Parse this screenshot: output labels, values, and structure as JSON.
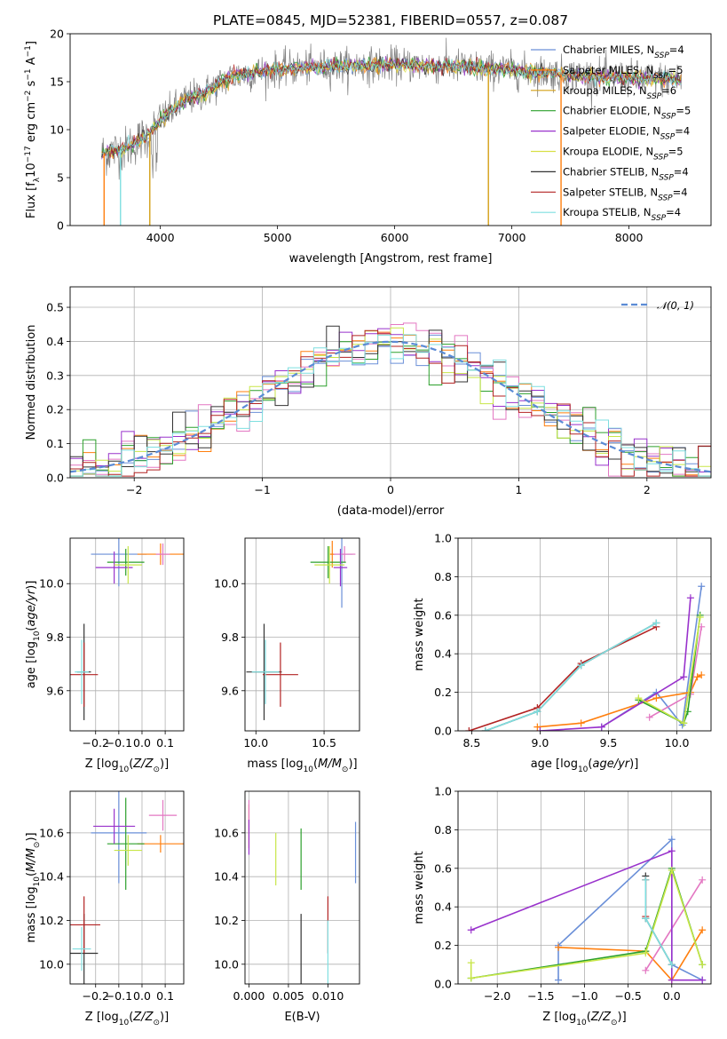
{
  "chart_data": [
    {
      "id": "spectrum",
      "type": "line",
      "title": "PLATE=0845, MJD=52381, FIBERID=0557, z=0.087",
      "xlabel": "wavelength [Angstrom, rest frame]",
      "ylabel": "Flux [f_λ 10^-17 erg cm^-2 s^-1 A^-1]",
      "xlim": [
        3230,
        8700
      ],
      "ylim": [
        0,
        20
      ],
      "xticks": [
        4000,
        5000,
        6000,
        7000,
        8000
      ],
      "yticks": [
        0,
        5,
        10,
        15,
        20
      ],
      "legend_position": "top-right",
      "grid": false,
      "continuum": [
        [
          3500,
          7.5
        ],
        [
          3700,
          8
        ],
        [
          3900,
          9.5
        ],
        [
          4000,
          11
        ],
        [
          4200,
          13
        ],
        [
          4400,
          14
        ],
        [
          4600,
          15.5
        ],
        [
          5000,
          16.3
        ],
        [
          5500,
          16.6
        ],
        [
          6000,
          16.8
        ],
        [
          6500,
          16.6
        ],
        [
          7000,
          16.2
        ],
        [
          7500,
          15.7
        ],
        [
          8000,
          15.4
        ],
        [
          8450,
          15.2
        ]
      ],
      "legend": [
        {
          "label": "Chabrier MILES, N",
          "sub": "SSP",
          "suffix": "=4",
          "color": "#6a8fd8"
        },
        {
          "label": "Salpeter MILES, N",
          "sub": "SSP",
          "suffix": "=5",
          "color": "#ff7f0e"
        },
        {
          "label": "Kroupa MILES, N",
          "sub": "SSP",
          "suffix": "=6",
          "color": "#d4a017"
        },
        {
          "label": "Chabrier ELODIE, N",
          "sub": "SSP",
          "suffix": "=5",
          "color": "#2ca02c"
        },
        {
          "label": "Salpeter ELODIE, N",
          "sub": "SSP",
          "suffix": "=4",
          "color": "#9932cc"
        },
        {
          "label": "Kroupa ELODIE, N",
          "sub": "SSP",
          "suffix": "=5",
          "color": "#d8e046"
        },
        {
          "label": "Chabrier STELIB, N",
          "sub": "SSP",
          "suffix": "=4",
          "color": "#333333"
        },
        {
          "label": "Salpeter STELIB, N",
          "sub": "SSP",
          "suffix": "=4",
          "color": "#b22222"
        },
        {
          "label": "Kroupa STELIB, N",
          "sub": "SSP",
          "suffix": "=4",
          "color": "#7fdfe0"
        }
      ]
    },
    {
      "id": "residuals",
      "type": "histogram",
      "xlabel": "(data-model)/error",
      "ylabel": "Normed distribution",
      "xlim": [
        -2.5,
        2.5
      ],
      "ylim": [
        0,
        0.56
      ],
      "xticks": [
        -2,
        -1,
        0,
        1,
        2
      ],
      "yticks": [
        0.0,
        0.1,
        0.2,
        0.3,
        0.4,
        0.5
      ],
      "grid": true,
      "legend_label": "𝒩(0, 1)",
      "legend_color": "#5b8bd5",
      "bin_width": 0.1,
      "series_colors": [
        "#6a8fd8",
        "#ff7f0e",
        "#e377c2",
        "#2ca02c",
        "#9932cc",
        "#c8e648",
        "#333333",
        "#b22222",
        "#7fdfe0"
      ]
    },
    {
      "id": "age_vs_Z",
      "type": "errorbar",
      "xlabel": "Z [log10(Z/Z⊙)]",
      "ylabel": "age [log10(age/yr)]",
      "xlim": [
        -0.31,
        0.18
      ],
      "ylim": [
        9.45,
        10.17
      ],
      "xticks": [
        -0.2,
        -0.1,
        0.0,
        0.1
      ],
      "yticks": [
        9.6,
        9.8,
        10.0
      ],
      "grid": true,
      "points": [
        {
          "x": -0.1,
          "y": 10.11,
          "xerr": 0.12,
          "yerr": 0.12,
          "color": "#6a8fd8"
        },
        {
          "x": 0.08,
          "y": 10.11,
          "xerr": 0.1,
          "yerr": 0.04,
          "color": "#ff7f0e"
        },
        {
          "x": 0.09,
          "y": 10.11,
          "xerr": 0.03,
          "yerr": 0.04,
          "color": "#e377c2"
        },
        {
          "x": -0.07,
          "y": 10.08,
          "xerr": 0.08,
          "yerr": 0.05,
          "color": "#2ca02c"
        },
        {
          "x": -0.12,
          "y": 10.06,
          "xerr": 0.08,
          "yerr": 0.06,
          "color": "#9932cc"
        },
        {
          "x": -0.06,
          "y": 10.07,
          "xerr": 0.06,
          "yerr": 0.07,
          "color": "#c8e648"
        },
        {
          "x": -0.25,
          "y": 9.67,
          "xerr": 0.03,
          "yerr": 0.18,
          "color": "#333333"
        },
        {
          "x": -0.25,
          "y": 9.66,
          "xerr": 0.06,
          "yerr": 0.12,
          "color": "#b22222"
        },
        {
          "x": -0.26,
          "y": 9.67,
          "xerr": 0.03,
          "yerr": 0.12,
          "color": "#7fdfe0"
        }
      ]
    },
    {
      "id": "age_vs_mass",
      "type": "errorbar",
      "xlabel": "mass [log10(M/M⊙)]",
      "ylabel": "",
      "xlim": [
        9.92,
        10.76
      ],
      "ylim": [
        9.45,
        10.17
      ],
      "xticks": [
        10.0,
        10.5
      ],
      "yticks": [
        9.6,
        9.8,
        10.0
      ],
      "grid": true,
      "points": [
        {
          "x": 10.63,
          "y": 10.11,
          "xerr": 0.08,
          "yerr": 0.2,
          "color": "#6a8fd8"
        },
        {
          "x": 10.56,
          "y": 10.11,
          "xerr": 0.02,
          "yerr": 0.05,
          "color": "#ff7f0e"
        },
        {
          "x": 10.65,
          "y": 10.11,
          "xerr": 0.08,
          "yerr": 0.03,
          "color": "#e377c2"
        },
        {
          "x": 10.53,
          "y": 10.08,
          "xerr": 0.13,
          "yerr": 0.06,
          "color": "#2ca02c"
        },
        {
          "x": 10.62,
          "y": 10.06,
          "xerr": 0.05,
          "yerr": 0.07,
          "color": "#9932cc"
        },
        {
          "x": 10.54,
          "y": 10.07,
          "xerr": 0.11,
          "yerr": 0.07,
          "color": "#c8e648"
        },
        {
          "x": 10.06,
          "y": 9.67,
          "xerr": 0.13,
          "yerr": 0.18,
          "color": "#333333"
        },
        {
          "x": 10.18,
          "y": 9.66,
          "xerr": 0.13,
          "yerr": 0.12,
          "color": "#b22222"
        },
        {
          "x": 10.07,
          "y": 9.67,
          "xerr": 0.1,
          "yerr": 0.12,
          "color": "#7fdfe0"
        }
      ]
    },
    {
      "id": "weight_vs_age",
      "type": "line",
      "xlabel": "age [log10(age/yr)]",
      "ylabel": "mass weight",
      "xlim": [
        8.4,
        10.25
      ],
      "ylim": [
        0.0,
        1.0
      ],
      "xticks": [
        8.5,
        9.0,
        9.5,
        10.0
      ],
      "yticks": [
        0.0,
        0.2,
        0.4,
        0.6,
        0.8,
        1.0
      ],
      "grid": true,
      "series": [
        {
          "color": "#6a8fd8",
          "points": [
            [
              9.45,
              0.02
            ],
            [
              9.85,
              0.2
            ],
            [
              10.04,
              0.03
            ],
            [
              10.18,
              0.75
            ]
          ]
        },
        {
          "color": "#ff7f0e",
          "points": [
            [
              8.98,
              0.02
            ],
            [
              9.3,
              0.04
            ],
            [
              9.85,
              0.17
            ],
            [
              10.1,
              0.2
            ],
            [
              10.15,
              0.28
            ],
            [
              10.18,
              0.29
            ]
          ]
        },
        {
          "color": "#e377c2",
          "points": [
            [
              9.8,
              0.07
            ],
            [
              10.1,
              0.19
            ],
            [
              10.18,
              0.54
            ]
          ]
        },
        {
          "color": "#2ca02c",
          "points": [
            [
              9.72,
              0.16
            ],
            [
              10.05,
              0.04
            ],
            [
              10.08,
              0.1
            ],
            [
              10.17,
              0.6
            ]
          ]
        },
        {
          "color": "#9932cc",
          "points": [
            [
              9.0,
              0.0
            ],
            [
              9.45,
              0.02
            ],
            [
              10.05,
              0.28
            ],
            [
              10.1,
              0.69
            ]
          ]
        },
        {
          "color": "#c8e648",
          "points": [
            [
              9.72,
              0.17
            ],
            [
              10.05,
              0.04
            ],
            [
              10.17,
              0.59
            ]
          ]
        },
        {
          "color": "#333333",
          "points": [
            [
              8.6,
              0.0
            ],
            [
              8.98,
              0.1
            ],
            [
              9.3,
              0.34
            ],
            [
              9.85,
              0.56
            ]
          ]
        },
        {
          "color": "#b22222",
          "points": [
            [
              8.48,
              0.0
            ],
            [
              8.98,
              0.12
            ],
            [
              9.3,
              0.35
            ],
            [
              9.85,
              0.54
            ]
          ]
        },
        {
          "color": "#7fdfe0",
          "points": [
            [
              8.6,
              0.0
            ],
            [
              8.98,
              0.1
            ],
            [
              9.3,
              0.34
            ],
            [
              9.85,
              0.56
            ]
          ]
        }
      ]
    },
    {
      "id": "mass_vs_Z",
      "type": "errorbar",
      "xlabel": "Z [log10(Z/Z⊙)]",
      "ylabel": "mass [log10(M/M⊙)]",
      "xlim": [
        -0.31,
        0.18
      ],
      "ylim": [
        9.91,
        10.79
      ],
      "xticks": [
        -0.2,
        -0.1,
        0.0,
        0.1
      ],
      "yticks": [
        10.0,
        10.2,
        10.4,
        10.6
      ],
      "grid": true,
      "points": [
        {
          "x": -0.1,
          "y": 10.6,
          "xerr": 0.12,
          "yerr": 0.23,
          "color": "#6a8fd8"
        },
        {
          "x": 0.08,
          "y": 10.55,
          "xerr": 0.1,
          "yerr": 0.04,
          "color": "#ff7f0e"
        },
        {
          "x": 0.09,
          "y": 10.68,
          "xerr": 0.06,
          "yerr": 0.07,
          "color": "#e377c2"
        },
        {
          "x": -0.07,
          "y": 10.55,
          "xerr": 0.08,
          "yerr": 0.21,
          "color": "#2ca02c"
        },
        {
          "x": -0.12,
          "y": 10.63,
          "xerr": 0.09,
          "yerr": 0.08,
          "color": "#9932cc"
        },
        {
          "x": -0.06,
          "y": 10.52,
          "xerr": 0.06,
          "yerr": 0.07,
          "color": "#c8e648"
        },
        {
          "x": -0.25,
          "y": 10.05,
          "xerr": 0.06,
          "yerr": 0.18,
          "color": "#333333"
        },
        {
          "x": -0.25,
          "y": 10.18,
          "xerr": 0.07,
          "yerr": 0.13,
          "color": "#b22222"
        },
        {
          "x": -0.26,
          "y": 10.07,
          "xerr": 0.04,
          "yerr": 0.1,
          "color": "#7fdfe0"
        }
      ]
    },
    {
      "id": "mass_vs_EBV",
      "type": "errorbar",
      "xlabel": "E(B-V)",
      "ylabel": "",
      "xlim": [
        -0.0005,
        0.014
      ],
      "ylim": [
        9.91,
        10.79
      ],
      "xticks": [
        0.0,
        0.005,
        0.01
      ],
      "xtick_labels": [
        "0.000",
        "0.005",
        "0.010"
      ],
      "yticks": [
        10.0,
        10.2,
        10.4,
        10.6
      ],
      "grid": true,
      "points": [
        {
          "x": 0.0135,
          "y": 10.51,
          "xerr": 0,
          "yerr": 0.14,
          "color": "#6a8fd8"
        },
        {
          "x": 0.0,
          "y": 10.63,
          "xerr": 0,
          "yerr": 0.1,
          "color": "#ff7f0e"
        },
        {
          "x": 0.0,
          "y": 10.68,
          "xerr": 0,
          "yerr": 0.07,
          "color": "#e377c2"
        },
        {
          "x": 0.0066,
          "y": 10.48,
          "xerr": 0,
          "yerr": 0.14,
          "color": "#2ca02c"
        },
        {
          "x": 0.0,
          "y": 10.58,
          "xerr": 0,
          "yerr": 0.08,
          "color": "#9932cc"
        },
        {
          "x": 0.0034,
          "y": 10.48,
          "xerr": 0,
          "yerr": 0.12,
          "color": "#c8e648"
        },
        {
          "x": 0.0066,
          "y": 10.05,
          "xerr": 0,
          "yerr": 0.18,
          "color": "#333333"
        },
        {
          "x": 0.01,
          "y": 10.18,
          "xerr": 0,
          "yerr": 0.13,
          "color": "#b22222"
        },
        {
          "x": 0.01,
          "y": 10.05,
          "xerr": 0,
          "yerr": 0.15,
          "color": "#7fdfe0"
        }
      ]
    },
    {
      "id": "weight_vs_Z",
      "type": "line",
      "xlabel": "Z [log10(Z/Z⊙)]",
      "ylabel": "mass weight",
      "xlim": [
        -2.45,
        0.45
      ],
      "ylim": [
        0.0,
        1.0
      ],
      "xticks": [
        -2.0,
        -1.5,
        -1.0,
        -0.5,
        0.0
      ],
      "yticks": [
        0.0,
        0.2,
        0.4,
        0.6,
        0.8,
        1.0
      ],
      "grid": true,
      "series": [
        {
          "color": "#6a8fd8",
          "points": [
            [
              -1.3,
              0.02
            ],
            [
              -1.3,
              0.2
            ],
            [
              0.0,
              0.75
            ],
            [
              0.0,
              0.1
            ],
            [
              0.35,
              0.02
            ]
          ]
        },
        {
          "color": "#ff7f0e",
          "points": [
            [
              -1.3,
              0.19
            ],
            [
              -0.3,
              0.17
            ],
            [
              0.0,
              0.02
            ],
            [
              0.35,
              0.28
            ]
          ]
        },
        {
          "color": "#e377c2",
          "points": [
            [
              -0.3,
              0.07
            ],
            [
              0.35,
              0.54
            ]
          ]
        },
        {
          "color": "#2ca02c",
          "points": [
            [
              -2.3,
              0.03
            ],
            [
              -0.3,
              0.17
            ],
            [
              0.0,
              0.6
            ],
            [
              0.35,
              0.1
            ]
          ]
        },
        {
          "color": "#9932cc",
          "points": [
            [
              -2.3,
              0.28
            ],
            [
              0.0,
              0.69
            ],
            [
              0.0,
              0.02
            ],
            [
              0.35,
              0.02
            ]
          ]
        },
        {
          "color": "#c8e648",
          "points": [
            [
              -2.3,
              0.11
            ],
            [
              -2.3,
              0.03
            ],
            [
              -0.3,
              0.16
            ],
            [
              0.0,
              0.59
            ],
            [
              0.35,
              0.1
            ]
          ]
        },
        {
          "color": "#333333",
          "points": [
            [
              -0.3,
              0.56
            ],
            [
              -0.3,
              0.34
            ],
            [
              0.0,
              0.1
            ]
          ]
        },
        {
          "color": "#b22222",
          "points": [
            [
              -0.3,
              0.54
            ],
            [
              -0.3,
              0.35
            ]
          ]
        },
        {
          "color": "#7fdfe0",
          "points": [
            [
              -0.3,
              0.54
            ],
            [
              -0.3,
              0.34
            ],
            [
              0.0,
              0.1
            ]
          ]
        }
      ]
    }
  ]
}
